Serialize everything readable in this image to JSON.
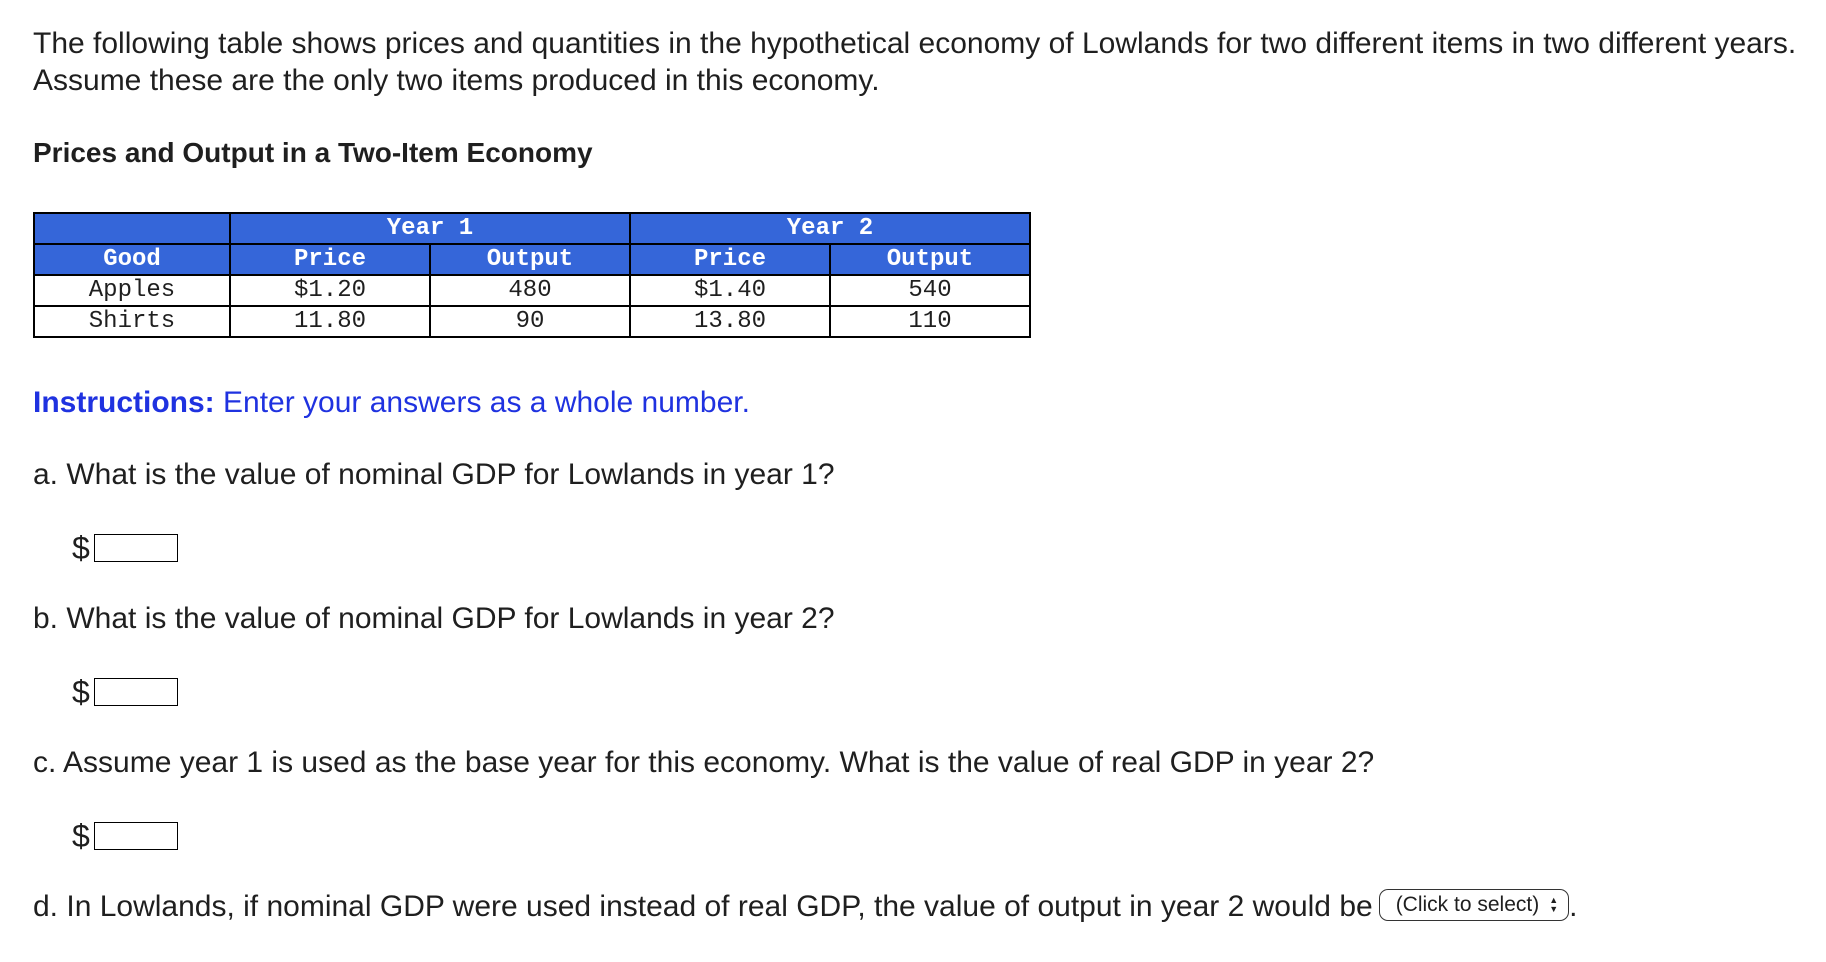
{
  "intro_text": "The following table shows prices and quantities in the hypothetical economy of Lowlands for two different items in two different years. Assume these are the only two items produced in this economy.",
  "table_title": "Prices and Output in a Two-Item Economy",
  "table": {
    "year1_label": "Year 1",
    "year2_label": "Year 2",
    "headers": [
      "Good",
      "Price",
      "Output",
      "Price",
      "Output"
    ],
    "rows": [
      [
        "Apples",
        "$1.20",
        "480",
        "$1.40",
        "540"
      ],
      [
        "Shirts",
        "11.80",
        "90",
        "13.80",
        "110"
      ]
    ]
  },
  "instructions": {
    "label": "Instructions:",
    "text": " Enter your answers as a whole number."
  },
  "questions": {
    "a": "a. What is the value of nominal GDP for Lowlands in year 1?",
    "b": "b. What is the value of nominal GDP for Lowlands in year 2?",
    "c": "c. Assume year 1 is used as the base year for this economy. What is the value of real GDP in year 2?",
    "d_prefix": "d. In Lowlands, if nominal GDP were used instead of real GDP, the value of output in year 2 would be",
    "d_suffix": "."
  },
  "answers": {
    "currency_symbol": "$",
    "a_value": "",
    "b_value": "",
    "c_value": ""
  },
  "select": {
    "selected_label": "(Click to select)",
    "arrow_icon": "up-down-chevron-icon"
  },
  "colors": {
    "header_blue": "#3566d9",
    "instruction_blue": "#1f32e0"
  }
}
